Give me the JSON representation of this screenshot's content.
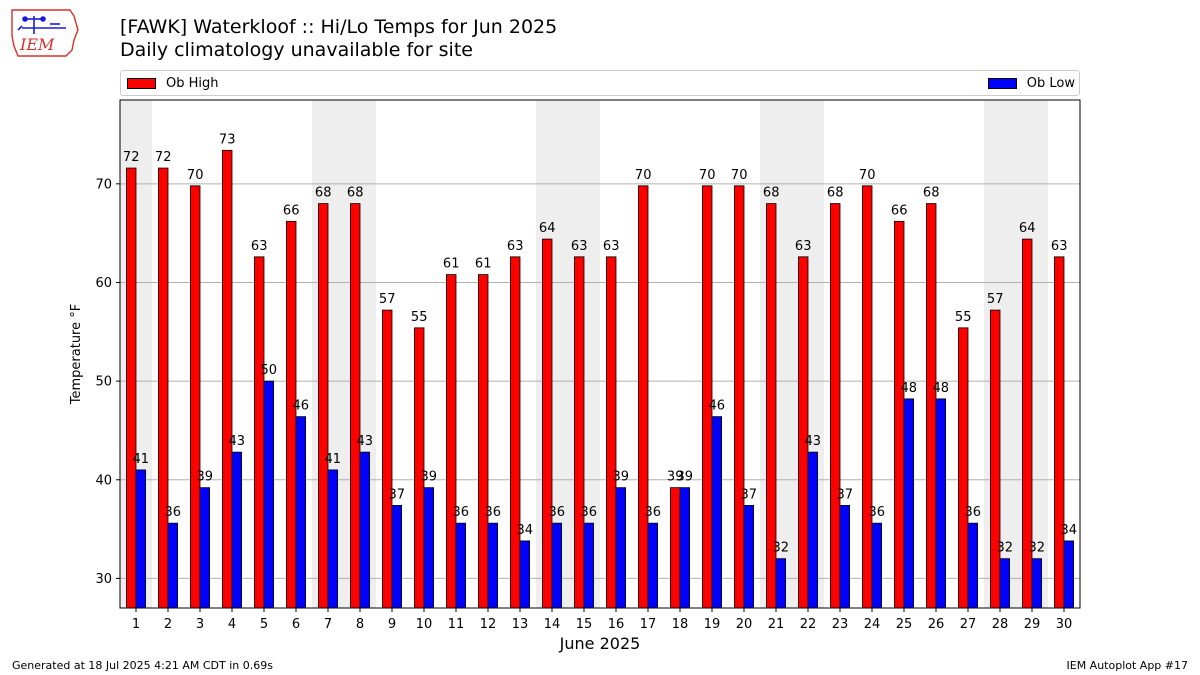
{
  "header": {
    "title": "[FAWK] Waterkloof :: Hi/Lo Temps for Jun 2025",
    "subtitle": "Daily climatology unavailable for site",
    "logo_text": "IEM"
  },
  "colors": {
    "high": "#ff0000",
    "low": "#0000ff",
    "weekend_shade": "#eeeeee",
    "grid": "#b0b0b0",
    "logo": "#d9312b"
  },
  "chart_data": {
    "type": "bar",
    "title": "[FAWK] Waterkloof :: Hi/Lo Temps for Jun 2025",
    "subtitle": "Daily climatology unavailable for site",
    "xlabel": "June 2025",
    "ylabel": "Temperature °F",
    "ylim": [
      27,
      78.5
    ],
    "yticks": [
      30,
      40,
      50,
      60,
      70
    ],
    "grid": true,
    "legend_placement": "top, above plot",
    "categories": [
      "1",
      "2",
      "3",
      "4",
      "5",
      "6",
      "7",
      "8",
      "9",
      "10",
      "11",
      "12",
      "13",
      "14",
      "15",
      "16",
      "17",
      "18",
      "19",
      "20",
      "21",
      "22",
      "23",
      "24",
      "25",
      "26",
      "27",
      "28",
      "29",
      "30"
    ],
    "series": [
      {
        "name": "Ob High",
        "color": "#ff0000",
        "values": [
          71.6,
          71.6,
          69.8,
          73.4,
          62.6,
          66.2,
          68.0,
          68.0,
          57.2,
          55.4,
          60.8,
          60.8,
          62.6,
          64.4,
          62.6,
          62.6,
          69.8,
          39.2,
          69.8,
          69.8,
          68.0,
          62.6,
          68.0,
          69.8,
          66.2,
          68.0,
          55.4,
          57.2,
          64.4,
          62.6
        ],
        "labels": [
          "72",
          "72",
          "70",
          "73",
          "63",
          "66",
          "68",
          "68",
          "57",
          "55",
          "61",
          "61",
          "63",
          "64",
          "63",
          "63",
          "70",
          "39",
          "70",
          "70",
          "68",
          "63",
          "68",
          "70",
          "66",
          "68",
          "55",
          "57",
          "64",
          "63"
        ]
      },
      {
        "name": "Ob Low",
        "color": "#0000ff",
        "values": [
          41.0,
          35.6,
          39.2,
          42.8,
          50.0,
          46.4,
          41.0,
          42.8,
          37.4,
          39.2,
          35.6,
          35.6,
          33.8,
          35.6,
          35.6,
          39.2,
          35.6,
          39.2,
          46.4,
          37.4,
          32.0,
          42.8,
          37.4,
          35.6,
          48.2,
          48.2,
          35.6,
          32.0,
          32.0,
          33.8
        ],
        "labels": [
          "41",
          "36",
          "39",
          "43",
          "50",
          "46",
          "41",
          "43",
          "37",
          "39",
          "36",
          "36",
          "34",
          "36",
          "36",
          "39",
          "36",
          "39",
          "46",
          "37",
          "32",
          "43",
          "37",
          "36",
          "48",
          "48",
          "36",
          "32",
          "32",
          "34"
        ]
      }
    ],
    "shaded_days": [
      "1",
      "7",
      "8",
      "14",
      "15",
      "21",
      "22",
      "28",
      "29"
    ]
  },
  "footer": {
    "left": "Generated at 18 Jul 2025 4:21 AM CDT in 0.69s",
    "right": "IEM Autoplot App #17"
  }
}
